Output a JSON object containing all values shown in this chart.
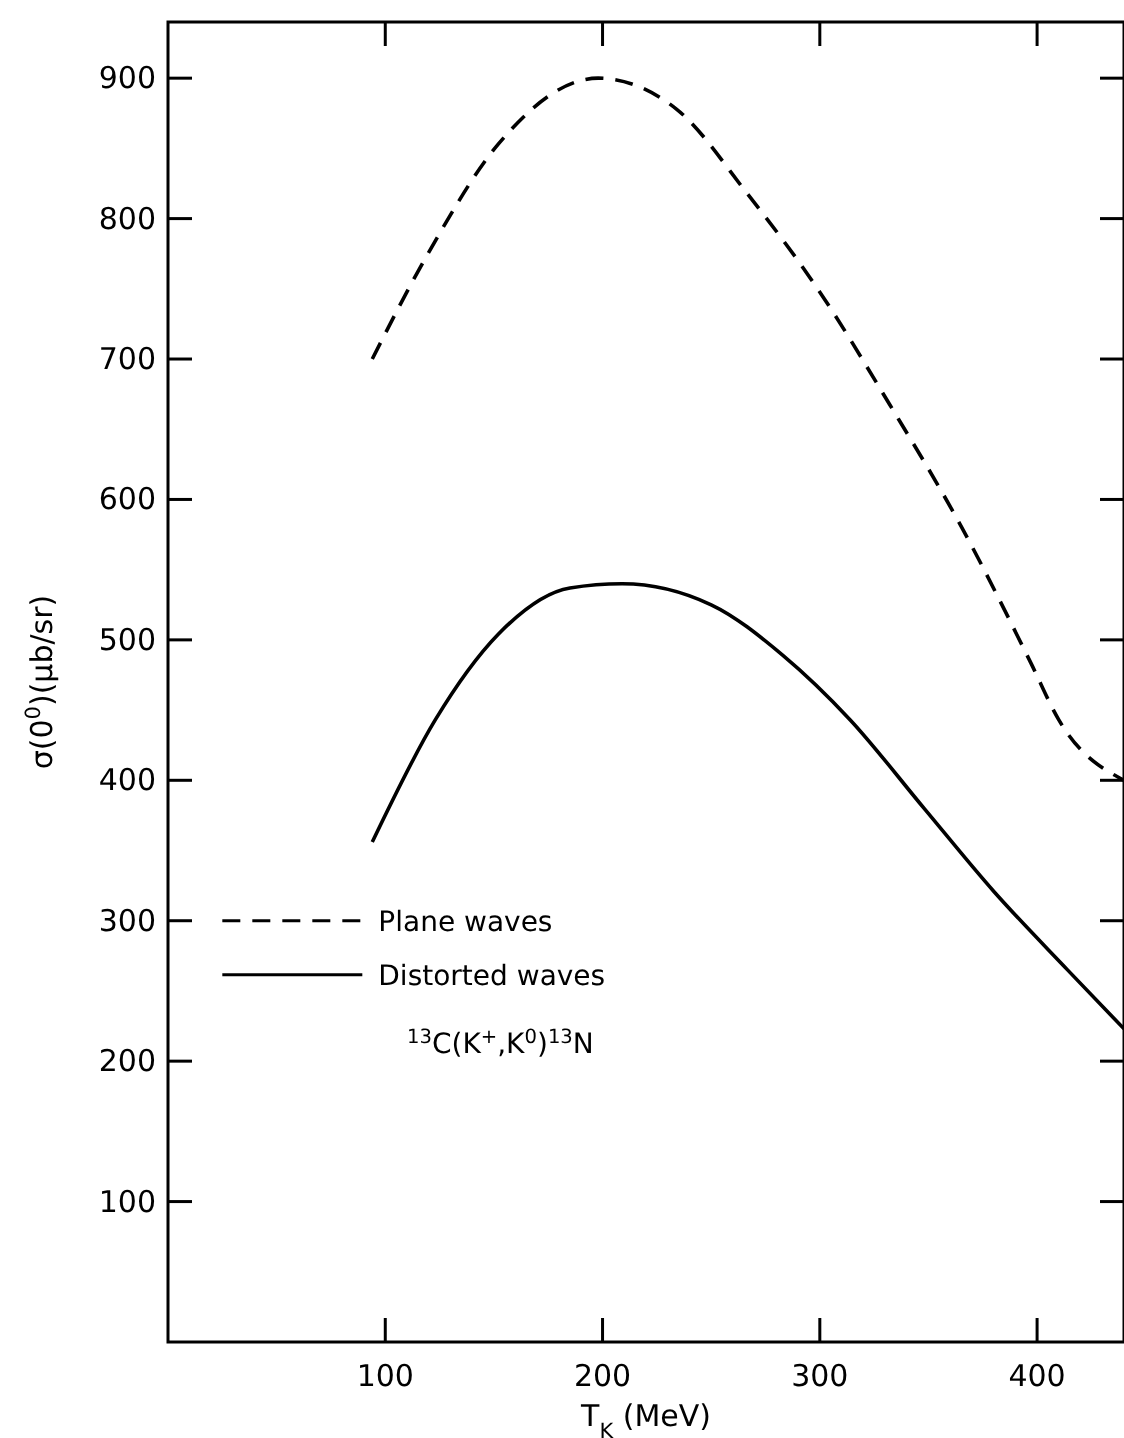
{
  "chart_data": {
    "type": "line",
    "xlabel": "T$_{K}$ (MeV)",
    "ylabel": "σ(0$^{0}$)(μb/sr)",
    "xlim": [
      0,
      440
    ],
    "ylim": [
      0,
      940
    ],
    "xticks": [
      100,
      200,
      300,
      400
    ],
    "yticks": [
      100,
      200,
      300,
      400,
      500,
      600,
      700,
      800,
      900
    ],
    "legend": "left",
    "grid": false,
    "annotations": [
      "$^{13}$C(K$^{+}$,K$^{0}$)$^{13}$N"
    ],
    "series": [
      {
        "name": "Plane waves",
        "color": "#000000",
        "line_style": "dashed",
        "x": [
          94,
          120,
          152,
          198,
          234,
          267,
          299,
          332,
          365,
          397,
          410,
          440
        ],
        "values": [
          700,
          776,
          853,
          900,
          878,
          817,
          750,
          668,
          581,
          484,
          443,
          400
        ]
      },
      {
        "name": "Distorted waves",
        "color": "#000000",
        "line_style": "solid",
        "x": [
          94,
          123,
          152,
          185,
          209,
          250,
          283,
          314,
          348,
          380,
          414,
          440
        ],
        "values": [
          356,
          443,
          504,
          537,
          540,
          525,
          489,
          443,
          380,
          321,
          265,
          223
        ]
      }
    ]
  }
}
